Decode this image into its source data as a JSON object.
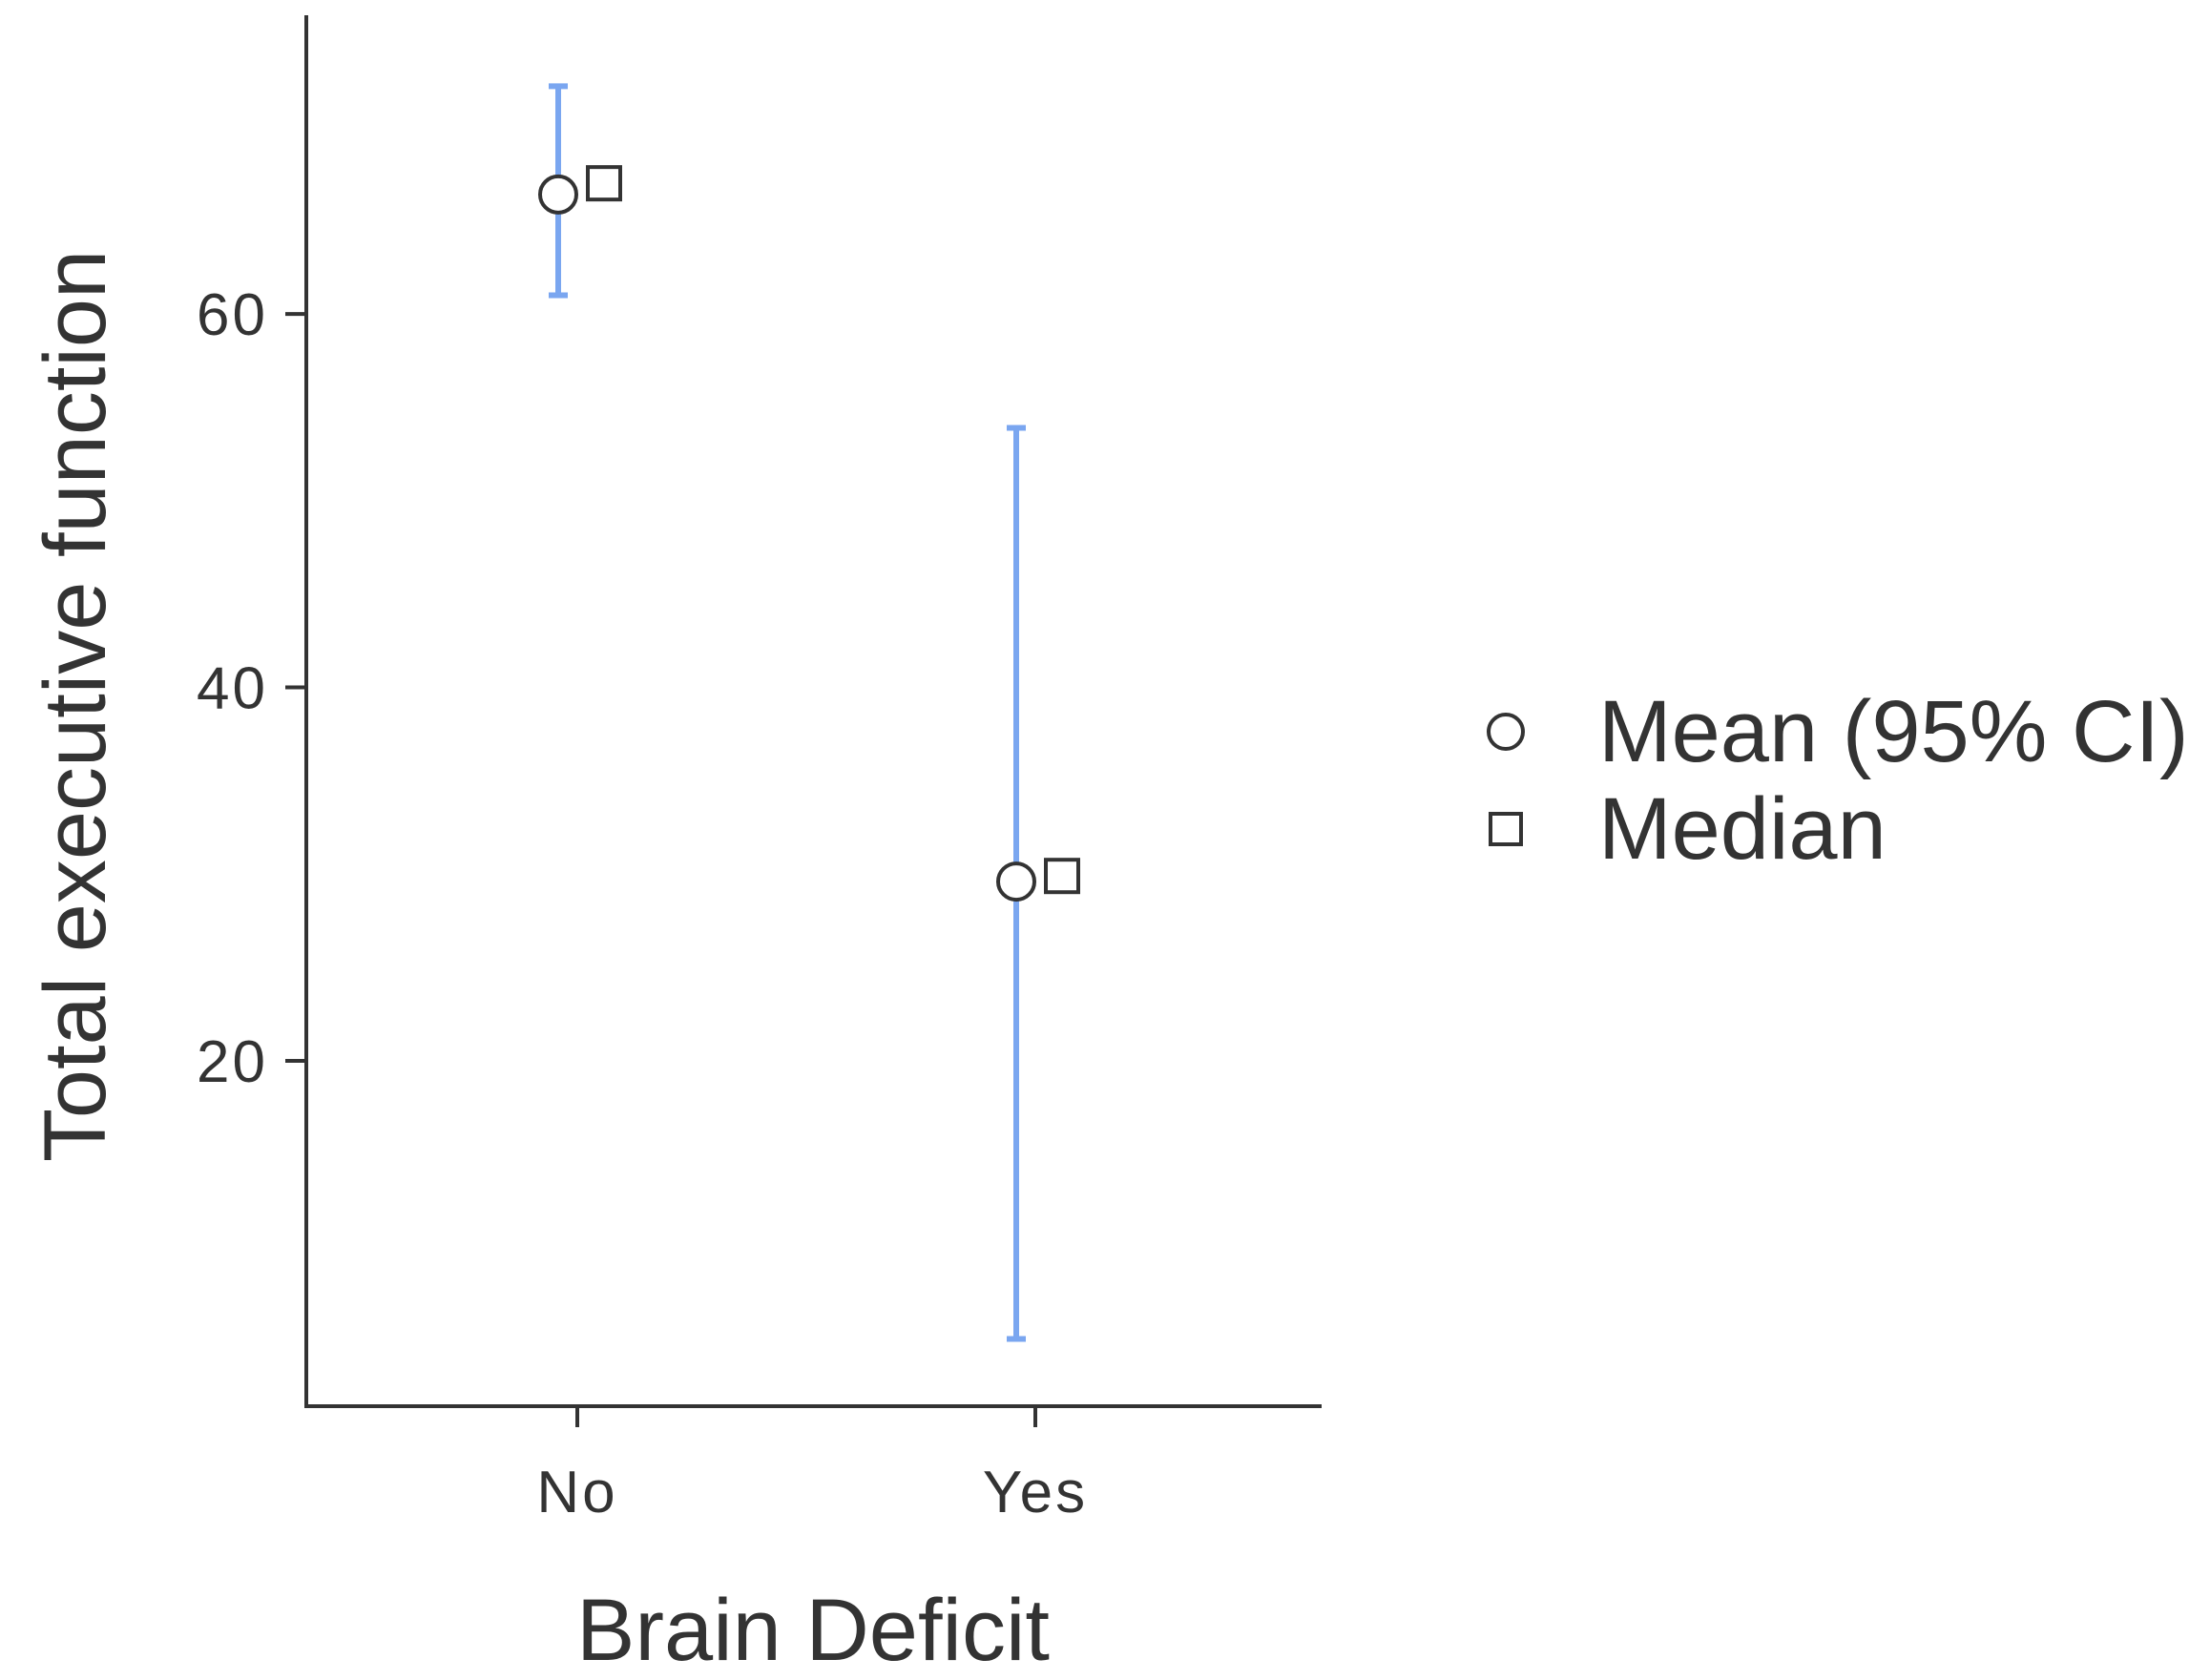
{
  "chart_data": {
    "type": "scatter",
    "title": "",
    "xlabel": "Brain Deficit",
    "ylabel": "Total executive function",
    "categories": [
      "No",
      "Yes"
    ],
    "ylim": [
      1.5,
      76
    ],
    "yticks": [
      20,
      40,
      60
    ],
    "ytick_labels": [
      "20",
      "40",
      "60"
    ],
    "grid": false,
    "legend": {
      "position": "right",
      "entries": [
        {
          "label": "Mean (95% CI)",
          "marker": "circle"
        },
        {
          "label": "Median",
          "marker": "square"
        }
      ]
    },
    "series": [
      {
        "name": "Mean (95% CI)",
        "marker": "circle",
        "values": [
          66.4,
          29.6
        ],
        "ci_lower": [
          61.0,
          5.1
        ],
        "ci_upper": [
          72.2,
          53.9
        ]
      },
      {
        "name": "Median",
        "marker": "square",
        "values": [
          67.0,
          29.9
        ]
      }
    ],
    "colors": {
      "error_bar": "#7aa6f0",
      "marker_stroke": "#333333",
      "marker_fill": "#ffffff",
      "axis": "#333333",
      "text": "#333333"
    }
  }
}
